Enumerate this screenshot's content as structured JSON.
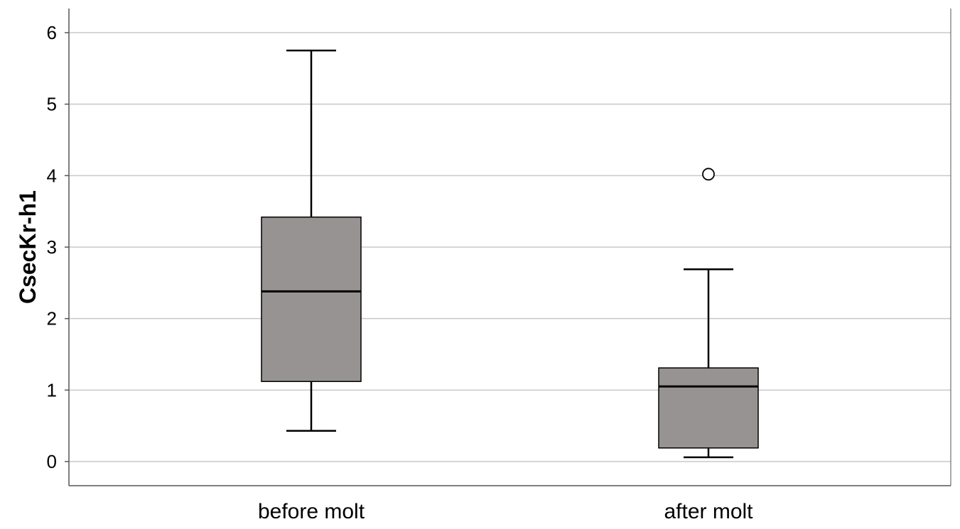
{
  "chart_data": {
    "type": "boxplot",
    "title": "",
    "xlabel": "",
    "ylabel": "CsecKr-h1",
    "ylim": [
      -0.33,
      6.35
    ],
    "yticks": [
      0,
      1,
      2,
      3,
      4,
      5,
      6
    ],
    "grid": true,
    "categories": [
      "before molt",
      "after molt"
    ],
    "boxes": [
      {
        "category": "before molt",
        "whisker_low": 0.43,
        "q1": 1.12,
        "median": 2.38,
        "q3": 3.42,
        "whisker_high": 5.75,
        "outliers": []
      },
      {
        "category": "after molt",
        "whisker_low": 0.06,
        "q1": 0.19,
        "median": 1.05,
        "q3": 1.31,
        "whisker_high": 2.69,
        "outliers": [
          4.02
        ]
      }
    ],
    "colors": {
      "box_fill": "#989393",
      "grid": "#c8c8c8",
      "axis": "#555555"
    }
  }
}
